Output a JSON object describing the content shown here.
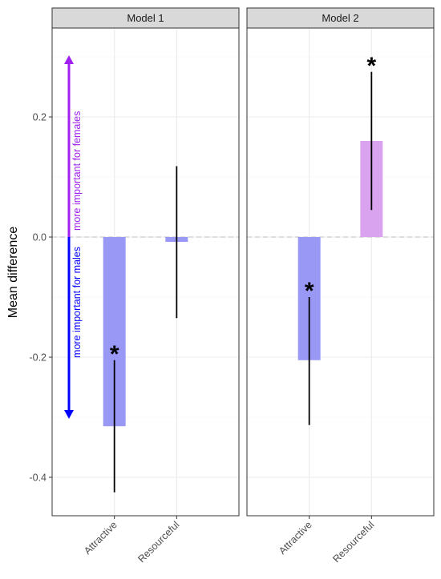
{
  "chart_data": {
    "type": "bar",
    "ylabel": "Mean difference",
    "ylim": [
      -0.46,
      0.35
    ],
    "yticks": [
      0.2,
      0.0,
      -0.2,
      -0.4
    ],
    "ytick_labels": [
      "0.2",
      "0.0",
      "-0.2",
      "-0.4"
    ],
    "reference_line": 0,
    "categories": [
      "Attractive",
      "Resourceful"
    ],
    "colors": {
      "negative": "#9999f5",
      "positive": "#d9a3f0",
      "arrow_up": "#a020f0",
      "arrow_down": "#0000ff"
    },
    "panels": [
      {
        "title": "Model 1",
        "values": [
          -0.315,
          -0.008
        ],
        "ci_low": [
          -0.425,
          -0.135
        ],
        "ci_high": [
          -0.205,
          0.118
        ],
        "significant": [
          true,
          false
        ]
      },
      {
        "title": "Model 2",
        "values": [
          -0.205,
          0.16
        ],
        "ci_low": [
          -0.313,
          0.045
        ],
        "ci_high": [
          -0.1,
          0.275
        ],
        "significant": [
          true,
          true
        ]
      }
    ],
    "significance_marker": "*",
    "annotation": {
      "up_label": "more important for females",
      "down_label": "more important for males",
      "up_end": 0.3,
      "down_end": -0.3
    }
  }
}
